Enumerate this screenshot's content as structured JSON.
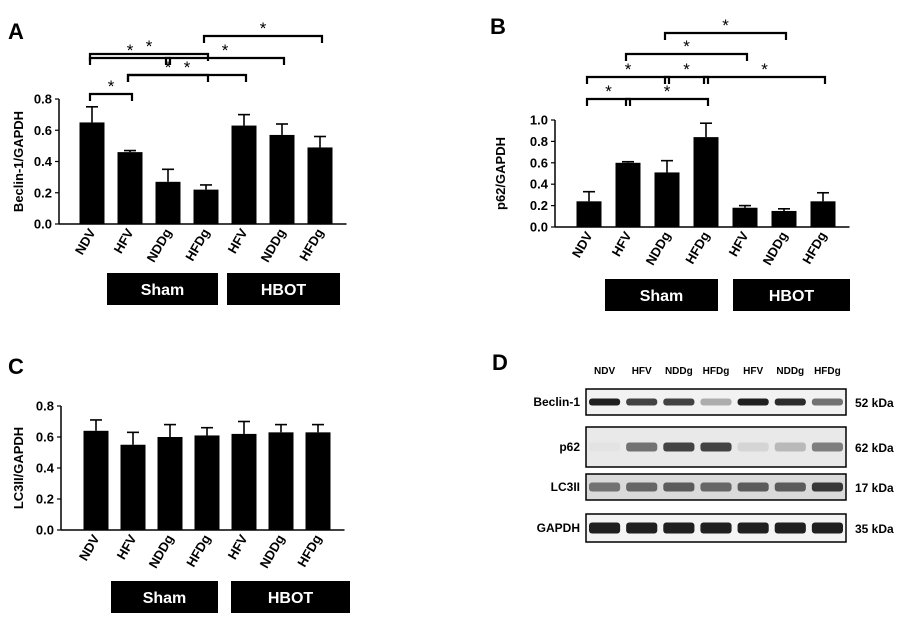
{
  "chart_data": [
    {
      "panel": "A",
      "type": "bar",
      "ylabel": "Beclin-1/GAPDH",
      "ylim": [
        0,
        0.8
      ],
      "yticks": [
        "0.0",
        "0.2",
        "0.4",
        "0.6",
        "0.8"
      ],
      "categories": [
        "NDV",
        "HFV",
        "NDDg",
        "HFDg",
        "HFV",
        "NDDg",
        "HFDg"
      ],
      "values": [
        0.65,
        0.46,
        0.27,
        0.22,
        0.63,
        0.57,
        0.49
      ],
      "errors": [
        0.1,
        0.01,
        0.08,
        0.03,
        0.07,
        0.07,
        0.07
      ],
      "groups": [
        {
          "label": "Sham",
          "from": 1,
          "to": 3
        },
        {
          "label": "HBOT",
          "from": 4,
          "to": 6
        }
      ],
      "significance": [
        {
          "from": 0,
          "to": 1,
          "label": "*"
        },
        {
          "from": 1,
          "to": 3,
          "label": "*"
        },
        {
          "from": 0,
          "to": 2,
          "label": "*"
        },
        {
          "from": 1,
          "to": 4,
          "label": "*"
        },
        {
          "from": 2,
          "to": 5,
          "label": "*"
        },
        {
          "from": 0,
          "to": 3,
          "label": "*"
        },
        {
          "from": 3,
          "to": 6,
          "label": "*"
        }
      ]
    },
    {
      "panel": "B",
      "type": "bar",
      "ylabel": "p62/GAPDH",
      "ylim": [
        0,
        1.0
      ],
      "yticks": [
        "0.0",
        "0.2",
        "0.4",
        "0.6",
        "0.8",
        "1.0"
      ],
      "categories": [
        "NDV",
        "HFV",
        "NDDg",
        "HFDg",
        "HFV",
        "NDDg",
        "HFDg"
      ],
      "values": [
        0.24,
        0.6,
        0.51,
        0.84,
        0.18,
        0.15,
        0.24
      ],
      "errors": [
        0.09,
        0.01,
        0.11,
        0.13,
        0.02,
        0.02,
        0.08
      ],
      "groups": [
        {
          "label": "Sham",
          "from": 1,
          "to": 3
        },
        {
          "label": "HBOT",
          "from": 4,
          "to": 6
        }
      ],
      "significance": [
        {
          "from": 0,
          "to": 1,
          "label": "*"
        },
        {
          "from": 1,
          "to": 3,
          "label": "*"
        },
        {
          "from": 0,
          "to": 2,
          "label": "*"
        },
        {
          "from": 2,
          "to": 3,
          "label": "*"
        },
        {
          "from": 3,
          "to": 6,
          "label": "*"
        },
        {
          "from": 1,
          "to": 4,
          "label": "*"
        },
        {
          "from": 2,
          "to": 5,
          "label": "*"
        }
      ]
    },
    {
      "panel": "C",
      "type": "bar",
      "ylabel": "LC3II/GAPDH",
      "ylim": [
        0,
        0.8
      ],
      "yticks": [
        "0.0",
        "0.2",
        "0.4",
        "0.6",
        "0.8"
      ],
      "categories": [
        "NDV",
        "HFV",
        "NDDg",
        "HFDg",
        "HFV",
        "NDDg",
        "HFDg"
      ],
      "values": [
        0.64,
        0.55,
        0.6,
        0.61,
        0.62,
        0.63,
        0.63
      ],
      "errors": [
        0.07,
        0.08,
        0.08,
        0.05,
        0.08,
        0.05,
        0.05
      ],
      "groups": [
        {
          "label": "Sham",
          "from": 1,
          "to": 3
        },
        {
          "label": "HBOT",
          "from": 4,
          "to": 6
        }
      ],
      "significance": []
    }
  ],
  "panel_d": {
    "label": "D",
    "lanes": [
      "NDV",
      "HFV",
      "NDDg",
      "HFDg",
      "HFV",
      "NDDg",
      "HFDg"
    ],
    "blots": [
      {
        "name": "Beclin-1",
        "kda": "52 kDa",
        "intensity": [
          0.95,
          0.8,
          0.8,
          0.35,
          0.95,
          0.9,
          0.6
        ],
        "bg": "#f2f2f2",
        "thickness": 7
      },
      {
        "name": "p62",
        "kda": "62 kDa",
        "intensity": [
          0.12,
          0.6,
          0.8,
          0.8,
          0.18,
          0.3,
          0.55
        ],
        "bg": "#e9e9e9",
        "thickness": 9
      },
      {
        "name": "LC3II",
        "kda": "17 kDa",
        "intensity": [
          0.6,
          0.65,
          0.7,
          0.65,
          0.7,
          0.7,
          0.85
        ],
        "bg": "#dadada",
        "thickness": 9
      },
      {
        "name": "GAPDH",
        "kda": "35 kDa",
        "intensity": [
          0.95,
          0.95,
          0.95,
          0.95,
          0.95,
          0.95,
          0.95
        ],
        "bg": "#f4f4f4",
        "thickness": 11
      }
    ]
  }
}
